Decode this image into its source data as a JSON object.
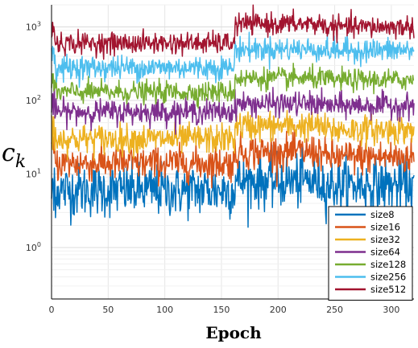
{
  "chart_data": {
    "type": "line",
    "title": "",
    "xlabel": "Epoch",
    "ylabel": "c",
    "ylabel_subscript": "k",
    "yscale": "log",
    "xlim": [
      0,
      320
    ],
    "ylim": [
      0.2,
      2000
    ],
    "x_ticks": [
      0,
      50,
      100,
      150,
      200,
      250,
      300
    ],
    "x_tick_labels": [
      "0",
      "50",
      "100",
      "150",
      "200",
      "250",
      "300"
    ],
    "y_ticks": [
      1,
      10,
      100,
      1000
    ],
    "y_tick_base": "10",
    "y_tick_exponents": [
      "0",
      "1",
      "2",
      "3"
    ],
    "grid": true,
    "legend_position": "bottom-right",
    "epochs_total": 320,
    "series": [
      {
        "name": "size8",
        "color": "#0072BD",
        "median_before": 6,
        "median_after": 8,
        "after_late": 7,
        "noise": 0.2
      },
      {
        "name": "size16",
        "color": "#D95319",
        "median_before": 14,
        "median_after": 20,
        "after_late": 17,
        "noise": 0.13
      },
      {
        "name": "size32",
        "color": "#EDB120",
        "median_before": 30,
        "median_after": 45,
        "after_late": 40,
        "noise": 0.11
      },
      {
        "name": "size64",
        "color": "#7E2F8E",
        "median_before": 70,
        "median_after": 90,
        "after_late": 85,
        "noise": 0.09
      },
      {
        "name": "size128",
        "color": "#77AC30",
        "median_before": 130,
        "median_after": 200,
        "after_late": 190,
        "noise": 0.08
      },
      {
        "name": "size256",
        "color": "#4DBEEE",
        "median_before": 280,
        "median_after": 500,
        "after_late": 480,
        "noise": 0.09
      },
      {
        "name": "size512",
        "color": "#A2142F",
        "median_before": 600,
        "median_after": 1100,
        "after_late": 1000,
        "noise": 0.08
      }
    ],
    "change_epoch": 162,
    "late_change_epoch": 240
  }
}
